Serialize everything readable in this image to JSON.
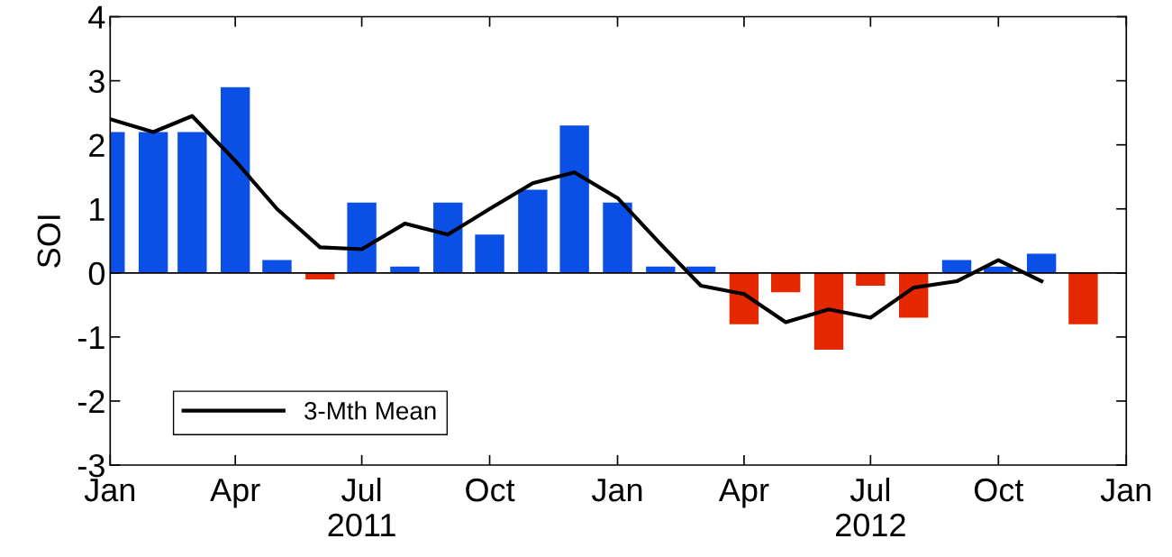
{
  "chart_data": {
    "type": "bar",
    "ylabel": "SOI",
    "x": [
      "2011-01",
      "2011-02",
      "2011-03",
      "2011-04",
      "2011-05",
      "2011-06",
      "2011-07",
      "2011-08",
      "2011-09",
      "2011-10",
      "2011-11",
      "2011-12",
      "2012-01",
      "2012-02",
      "2012-03",
      "2012-04",
      "2012-05",
      "2012-06",
      "2012-07",
      "2012-08",
      "2012-09",
      "2012-10",
      "2012-11",
      "2012-12"
    ],
    "series": [
      {
        "colors": [
          "#0a50e6",
          "#0a50e6",
          "#0a50e6",
          "#0a50e6",
          "#0a50e6",
          "#e62800",
          "#0a50e6",
          "#0a50e6",
          "#0a50e6",
          "#0a50e6",
          "#0a50e6",
          "#0a50e6",
          "#0a50e6",
          "#0a50e6",
          "#0a50e6",
          "#e62800",
          "#e62800",
          "#e62800",
          "#e62800",
          "#e62800",
          "#0a50e6",
          "#0a50e6",
          "#0a50e6",
          "#e62800"
        ],
        "values": [
          2.2,
          2.2,
          2.2,
          2.9,
          0.2,
          -0.1,
          1.1,
          0.1,
          1.1,
          0.6,
          1.3,
          2.3,
          1.1,
          0.1,
          0.1,
          -0.8,
          -0.3,
          -1.2,
          -0.2,
          -0.7,
          0.2,
          0.1,
          0.3,
          -0.8
        ]
      },
      {
        "type": "line",
        "name": "3-Mth Mean",
        "color": "#000000",
        "values": [
          2.4,
          2.2,
          2.45,
          1.75,
          1.0,
          0.4,
          0.37,
          0.77,
          0.6,
          1.0,
          1.4,
          1.57,
          1.17,
          0.45,
          -0.2,
          -0.33,
          -0.77,
          -0.57,
          -0.7,
          -0.23,
          -0.13,
          0.2,
          -0.13,
          null
        ]
      }
    ],
    "xlim": [
      "2011-01",
      "2013-01"
    ],
    "xticks": [
      {
        "value": "2011-01",
        "label": "Jan"
      },
      {
        "value": "2011-04",
        "label": "Apr"
      },
      {
        "value": "2011-07",
        "label": "Jul\n2011"
      },
      {
        "value": "2011-10",
        "label": "Oct"
      },
      {
        "value": "2012-01",
        "label": "Jan"
      },
      {
        "value": "2012-04",
        "label": "Apr"
      },
      {
        "value": "2012-07",
        "label": "Jul\n2012"
      },
      {
        "value": "2012-10",
        "label": "Oct"
      },
      {
        "value": "2013-01",
        "label": "Jan"
      }
    ],
    "ylim": [
      -3,
      4
    ],
    "yticks": [
      -3,
      -2,
      -1,
      0,
      1,
      2,
      3,
      4
    ],
    "ref_lines": [
      {
        "axis": "y",
        "value": 0,
        "color": "#000000"
      }
    ],
    "grid": false,
    "legend": "bottom left",
    "marker": "none",
    "line_style": "solid"
  }
}
